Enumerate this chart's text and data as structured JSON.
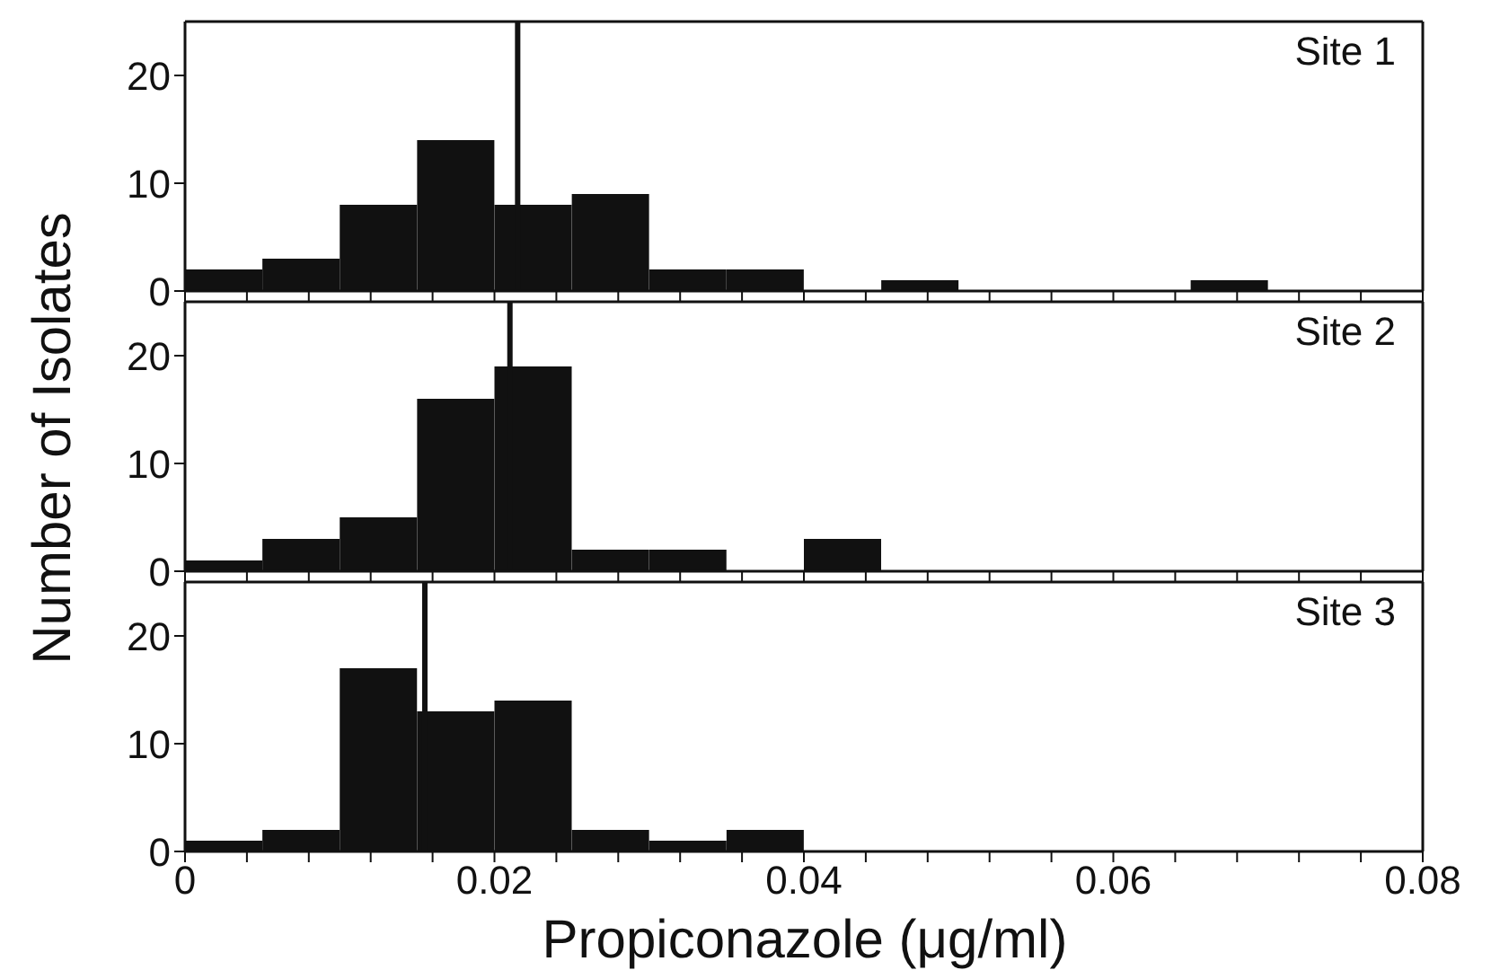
{
  "chart_data": [
    {
      "type": "histogram",
      "bins": [
        0,
        0.005,
        0.01,
        0.015,
        0.02,
        0.025,
        0.03,
        0.035,
        0.04,
        0.045,
        0.05,
        0.055,
        0.06,
        0.065,
        0.07,
        0.075,
        0.08
      ],
      "values": [
        2,
        3,
        8,
        14,
        8,
        9,
        2,
        2,
        0,
        1,
        0,
        0,
        0,
        1,
        0,
        0
      ],
      "color": "#111111",
      "xlim": [
        0,
        0.08
      ],
      "xticks": [
        0,
        {
          "value": 0.004,
          "label": null
        },
        {
          "value": 0.008,
          "label": null
        },
        {
          "value": 0.012,
          "label": null
        },
        {
          "value": 0.016,
          "label": null
        },
        0.02,
        {
          "value": 0.024,
          "label": null
        },
        {
          "value": 0.028,
          "label": null
        },
        {
          "value": 0.032,
          "label": null
        },
        {
          "value": 0.036,
          "label": null
        },
        0.04,
        {
          "value": 0.044,
          "label": null
        },
        {
          "value": 0.048,
          "label": null
        },
        {
          "value": 0.052,
          "label": null
        },
        {
          "value": 0.056,
          "label": null
        },
        0.06,
        {
          "value": 0.064,
          "label": null
        },
        {
          "value": 0.068,
          "label": null
        },
        {
          "value": 0.072,
          "label": null
        },
        {
          "value": 0.076,
          "label": null
        },
        0.08
      ],
      "ylim": [
        0,
        25
      ],
      "yticks": [
        0,
        10,
        20
      ],
      "tick_labels": "y",
      "annotations": [
        "Site 1"
      ],
      "ref_lines": [
        {
          "axis": "x",
          "value": 0.0215,
          "color": "#111111"
        }
      ]
    },
    {
      "type": "histogram",
      "bins": [
        0,
        0.005,
        0.01,
        0.015,
        0.02,
        0.025,
        0.03,
        0.035,
        0.04,
        0.045,
        0.05,
        0.055,
        0.06,
        0.065,
        0.07,
        0.075,
        0.08
      ],
      "values": [
        1,
        3,
        5,
        16,
        19,
        2,
        2,
        0,
        3,
        0,
        0,
        0,
        0,
        0,
        0,
        0
      ],
      "color": "#111111",
      "xlim": [
        0,
        0.08
      ],
      "xticks": [
        0,
        {
          "value": 0.004,
          "label": null
        },
        {
          "value": 0.008,
          "label": null
        },
        {
          "value": 0.012,
          "label": null
        },
        {
          "value": 0.016,
          "label": null
        },
        0.02,
        {
          "value": 0.024,
          "label": null
        },
        {
          "value": 0.028,
          "label": null
        },
        {
          "value": 0.032,
          "label": null
        },
        {
          "value": 0.036,
          "label": null
        },
        0.04,
        {
          "value": 0.044,
          "label": null
        },
        {
          "value": 0.048,
          "label": null
        },
        {
          "value": 0.052,
          "label": null
        },
        {
          "value": 0.056,
          "label": null
        },
        0.06,
        {
          "value": 0.064,
          "label": null
        },
        {
          "value": 0.068,
          "label": null
        },
        {
          "value": 0.072,
          "label": null
        },
        {
          "value": 0.076,
          "label": null
        },
        0.08
      ],
      "ylim": [
        0,
        25
      ],
      "yticks": [
        0,
        10,
        20
      ],
      "tick_labels": "y",
      "ylabel": "Number of Isolates",
      "annotations": [
        "Site 2"
      ],
      "ref_lines": [
        {
          "axis": "x",
          "value": 0.021,
          "color": "#111111"
        }
      ]
    },
    {
      "type": "histogram",
      "bins": [
        0,
        0.005,
        0.01,
        0.015,
        0.02,
        0.025,
        0.03,
        0.035,
        0.04,
        0.045,
        0.05,
        0.055,
        0.06,
        0.065,
        0.07,
        0.075,
        0.08
      ],
      "values": [
        1,
        2,
        17,
        13,
        14,
        2,
        1,
        2,
        0,
        0,
        0,
        0,
        0,
        0,
        0,
        0
      ],
      "color": "#111111",
      "xlim": [
        0,
        0.08
      ],
      "xticks": [
        0,
        {
          "value": 0.004,
          "label": null
        },
        {
          "value": 0.008,
          "label": null
        },
        {
          "value": 0.012,
          "label": null
        },
        {
          "value": 0.016,
          "label": null
        },
        0.02,
        {
          "value": 0.024,
          "label": null
        },
        {
          "value": 0.028,
          "label": null
        },
        {
          "value": 0.032,
          "label": null
        },
        {
          "value": 0.036,
          "label": null
        },
        0.04,
        {
          "value": 0.044,
          "label": null
        },
        {
          "value": 0.048,
          "label": null
        },
        {
          "value": 0.052,
          "label": null
        },
        {
          "value": 0.056,
          "label": null
        },
        0.06,
        {
          "value": 0.064,
          "label": null
        },
        {
          "value": 0.068,
          "label": null
        },
        {
          "value": 0.072,
          "label": null
        },
        {
          "value": 0.076,
          "label": null
        },
        0.08
      ],
      "ylim": [
        0,
        25
      ],
      "yticks": [
        0,
        10,
        20
      ],
      "xlabel": "Propiconazole (μg/ml)",
      "annotations": [
        "Site 3"
      ],
      "ref_lines": [
        {
          "axis": "x",
          "value": 0.0155,
          "color": "#111111"
        }
      ]
    }
  ]
}
